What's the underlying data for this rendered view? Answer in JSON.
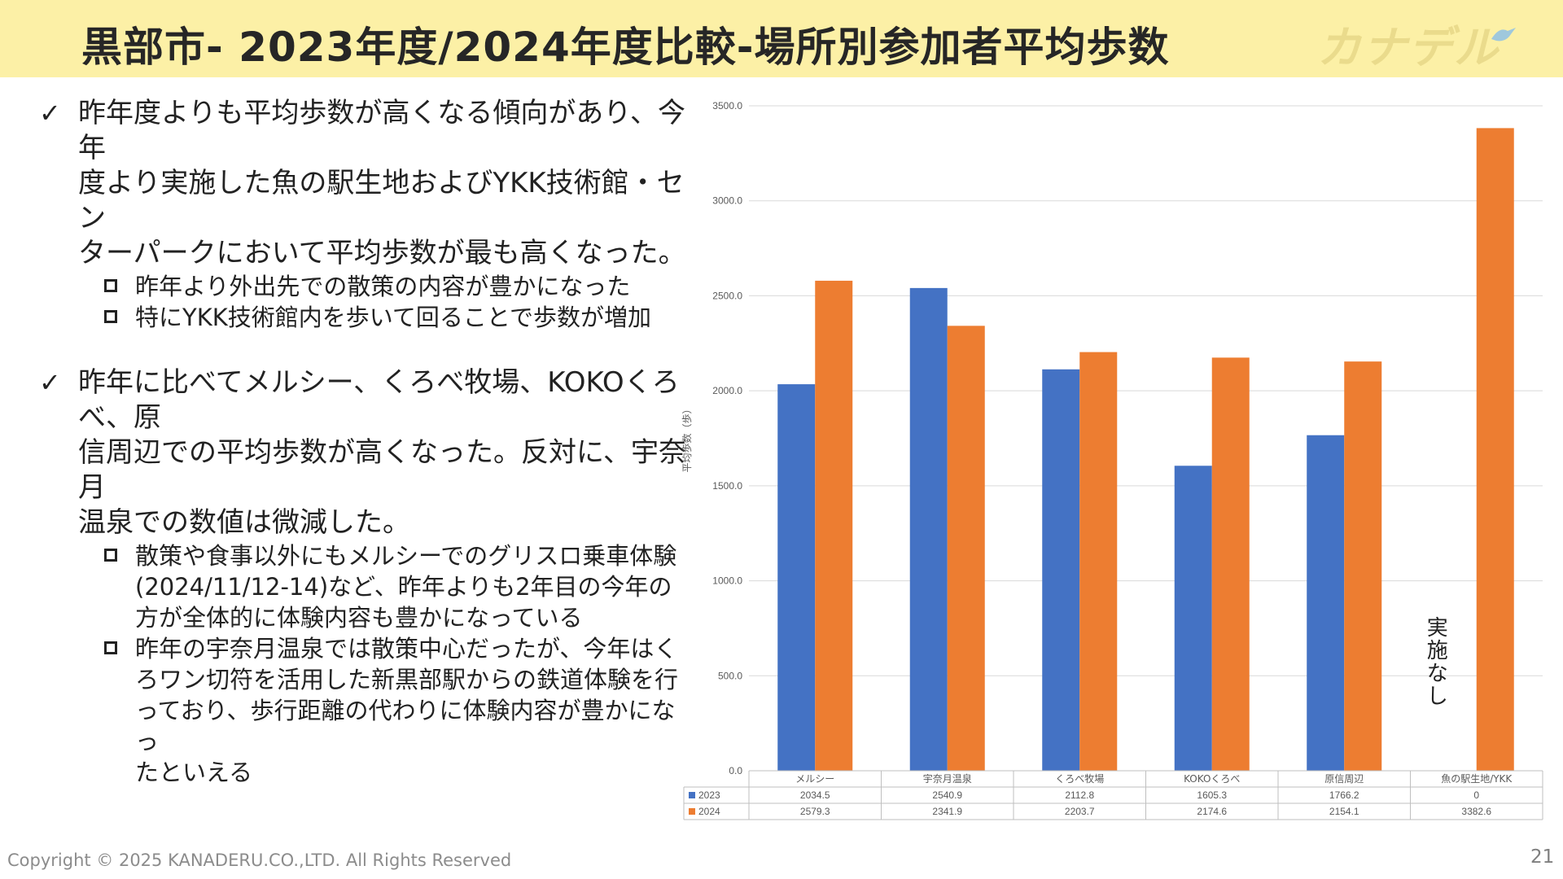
{
  "header": {
    "title": "黒部市- 2023年度/2024年度比較-場所別参加者平均歩数",
    "logo_text": "カナデル"
  },
  "bullets": [
    {
      "mark": "✓",
      "text_lines": [
        "昨年度よりも平均歩数が高くなる傾向があり、今年",
        "度より実施した魚の駅生地およびYKK技術館・セン",
        "ターパークにおいて平均歩数が最も高くなった。"
      ],
      "subs": [
        {
          "lines": [
            "昨年より外出先での散策の内容が豊かになった"
          ]
        },
        {
          "lines": [
            "特にYKK技術館内を歩いて回ることで歩数が増加"
          ]
        }
      ]
    },
    {
      "mark": "✓",
      "text_lines": [
        "昨年に比べてメルシー、くろべ牧場、KOKOくろべ、原",
        "信周辺での平均歩数が高くなった。反対に、宇奈月",
        "温泉での数値は微減した。"
      ],
      "subs": [
        {
          "lines": [
            "散策や食事以外にもメルシーでのグリスロ乗車体験",
            "(2024/11/12-14)など、昨年よりも2年目の今年の",
            "方が全体的に体験内容も豊かになっている"
          ]
        },
        {
          "lines": [
            "昨年の宇奈月温泉では散策中心だったが、今年はく",
            "ろワン切符を活用した新黒部駅からの鉄道体験を行",
            "っており、歩行距離の代わりに体験内容が豊かになっ",
            "たといえる"
          ]
        }
      ]
    }
  ],
  "chart_data": {
    "type": "bar",
    "categories": [
      "メルシー",
      "宇奈月温泉",
      "くろべ牧場",
      "KOKOくろべ",
      "原信周辺",
      "魚の駅生地/YKK"
    ],
    "series": [
      {
        "name": "2023",
        "values": [
          2034.5,
          2540.9,
          2112.8,
          1605.3,
          1766.2,
          0
        ],
        "labels": [
          "2034.5",
          "2540.9",
          "2112.8",
          "1605.3",
          "1766.2",
          "0"
        ],
        "color": "#4472c4"
      },
      {
        "name": "2024",
        "values": [
          2579.3,
          2341.9,
          2203.7,
          2174.6,
          2154.1,
          3382.6
        ],
        "labels": [
          "2579.3",
          "2341.9",
          "2203.7",
          "2174.6",
          "2154.1",
          "3382.6"
        ],
        "color": "#ed7d31"
      }
    ],
    "ylabel": "平均歩数（歩）",
    "ylim": [
      0,
      3500
    ],
    "yticks": [
      "0.0",
      "500.0",
      "1000.0",
      "1500.0",
      "2000.0",
      "2500.0",
      "3000.0",
      "3500.0"
    ],
    "annotation": "実施なし",
    "data_table": true
  },
  "footer": {
    "copyright": "Copyright © 2025 KANADERU.CO.,LTD. All Rights Reserved",
    "page_number": "21"
  }
}
